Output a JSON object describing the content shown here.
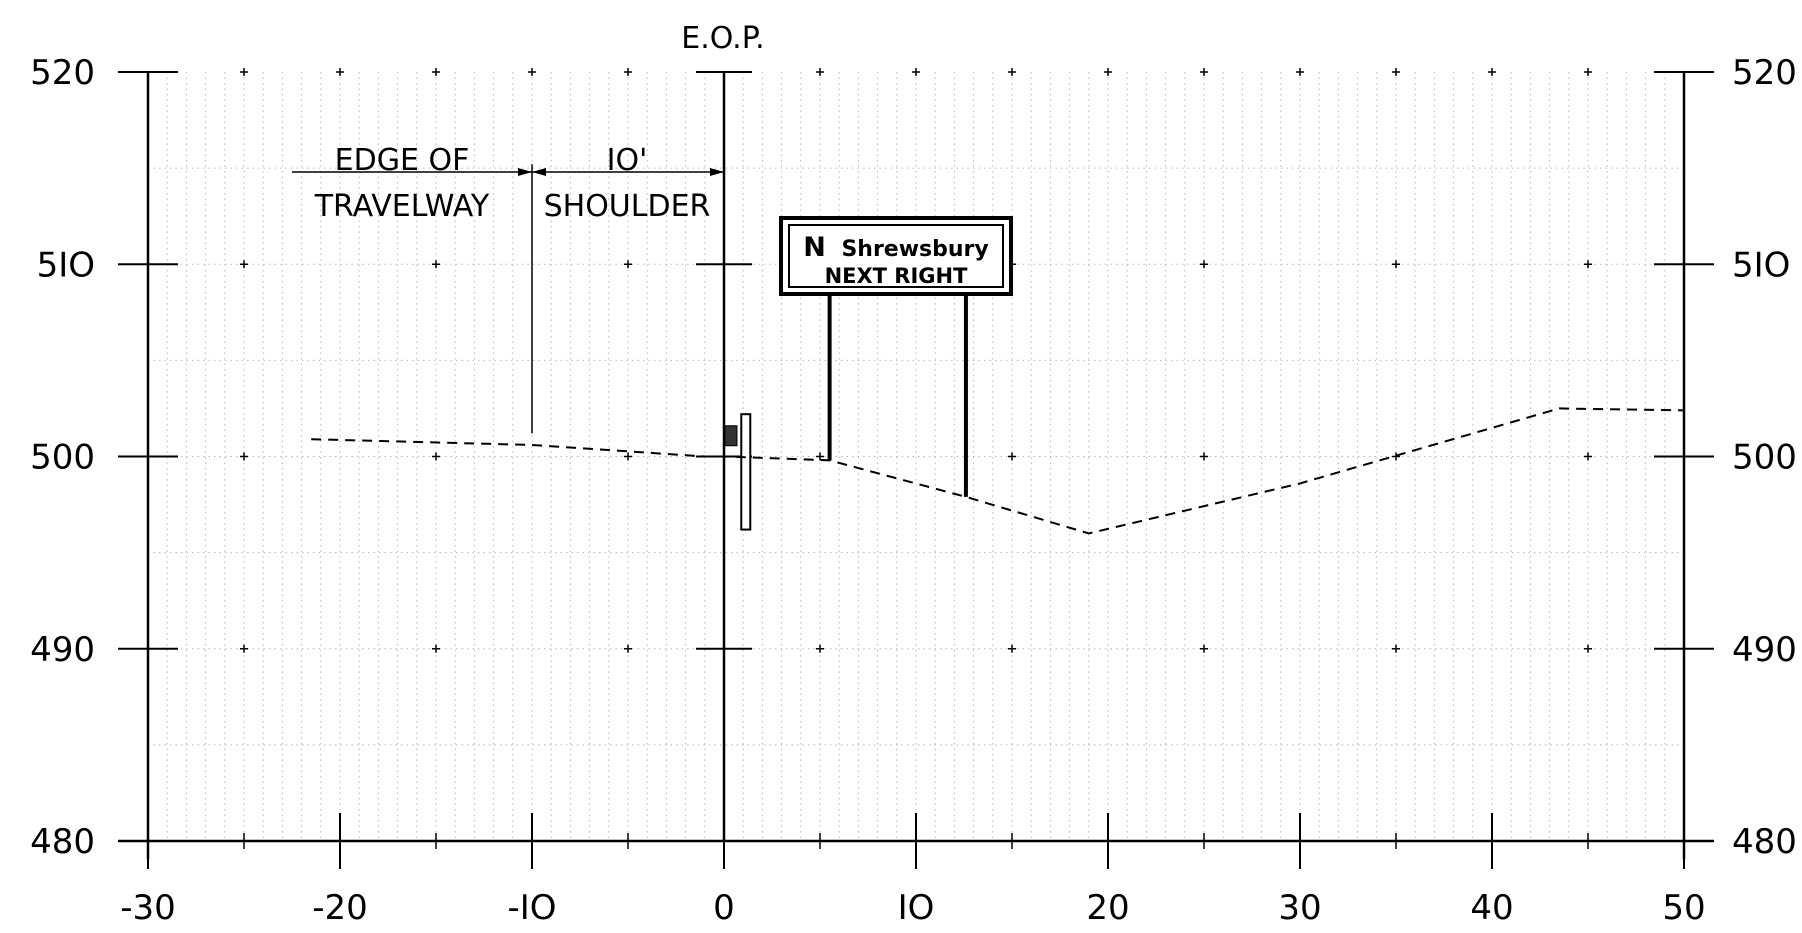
{
  "title": "E.O.P.",
  "axes": {
    "x_min": -30,
    "x_max": 50,
    "x_major": 10,
    "x_minor": 5,
    "x_grid": 1,
    "y_min": 480,
    "y_max": 520,
    "y_major": 10,
    "y_minor": 5,
    "y_grid": 1,
    "x_tick_labels": [
      "-30",
      "-20",
      "-IO",
      "0",
      "IO",
      "20",
      "30",
      "40",
      "50"
    ],
    "y_tick_labels": [
      "480",
      "490",
      "500",
      "5IO",
      "520"
    ]
  },
  "annotations": {
    "edge_of_travelway": {
      "line1": "EDGE OF",
      "line2": "TRAVELWAY"
    },
    "shoulder": {
      "line1": "IO'",
      "line2": "SHOULDER"
    }
  },
  "sign": {
    "line1_big": "N",
    "line1_rest": "Shrewsbury",
    "line2": "NEXT RIGHT",
    "post_bases": [
      {
        "x": 5.5,
        "y": 499.8
      },
      {
        "x": 12.6,
        "y": 497.9
      }
    ]
  },
  "chart_data": {
    "type": "line",
    "title": "E.O.P.",
    "xlabel": "",
    "ylabel": "",
    "xlim": [
      -30,
      50
    ],
    "ylim": [
      480,
      520
    ],
    "series": [
      {
        "name": "",
        "style": "dashed",
        "x": [
          -21.5,
          -10,
          -1,
          0,
          5.5,
          12.6,
          19,
          30,
          43.5,
          50
        ],
        "y": [
          500.9,
          500.6,
          500.0,
          500.0,
          499.8,
          497.9,
          496.0,
          498.6,
          502.5,
          502.4
        ]
      }
    ],
    "grid": true
  }
}
